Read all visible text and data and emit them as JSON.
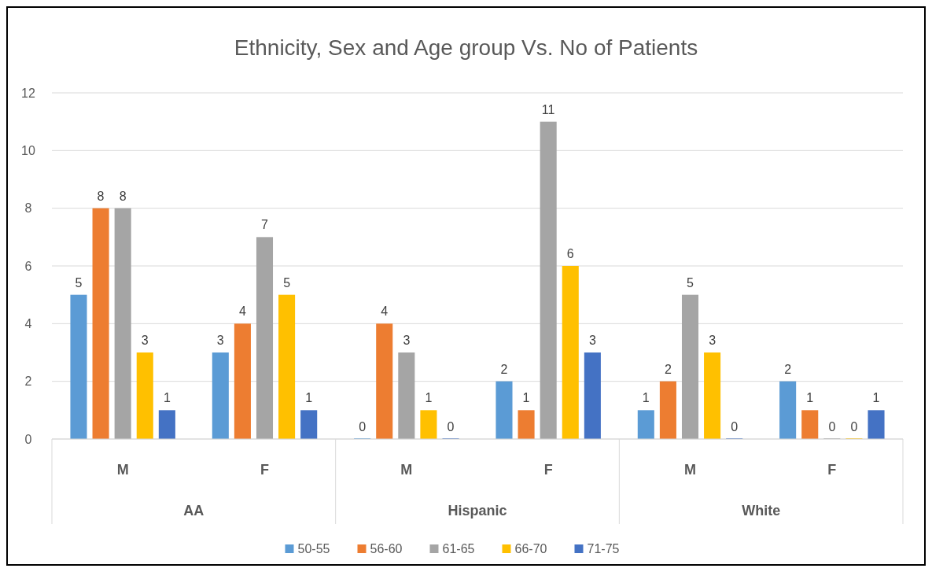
{
  "chart_data": {
    "type": "bar",
    "title": "Ethnicity, Sex and Age group Vs. No of Patients",
    "categories": [
      "M",
      "F",
      "M",
      "F",
      "M",
      "F"
    ],
    "annotations": [
      "AA",
      "Hispanic",
      "White"
    ],
    "series": [
      {
        "name": "50-55",
        "color": "#5b9bd5",
        "values": [
          5,
          3,
          0,
          2,
          1,
          2
        ]
      },
      {
        "name": "56-60",
        "color": "#ed7d31",
        "values": [
          8,
          4,
          4,
          1,
          2,
          1
        ]
      },
      {
        "name": "61-65",
        "color": "#a5a5a5",
        "values": [
          8,
          7,
          3,
          11,
          5,
          0
        ]
      },
      {
        "name": "66-70",
        "color": "#ffc000",
        "values": [
          3,
          5,
          1,
          6,
          3,
          0
        ]
      },
      {
        "name": "71-75",
        "color": "#4472c4",
        "values": [
          1,
          1,
          0,
          3,
          0,
          1
        ]
      }
    ],
    "ylim": [
      0,
      12
    ],
    "yticks": [
      0,
      2,
      4,
      6,
      8,
      10,
      12
    ],
    "grid": "y",
    "legend": "bottom",
    "data_labels": true
  }
}
